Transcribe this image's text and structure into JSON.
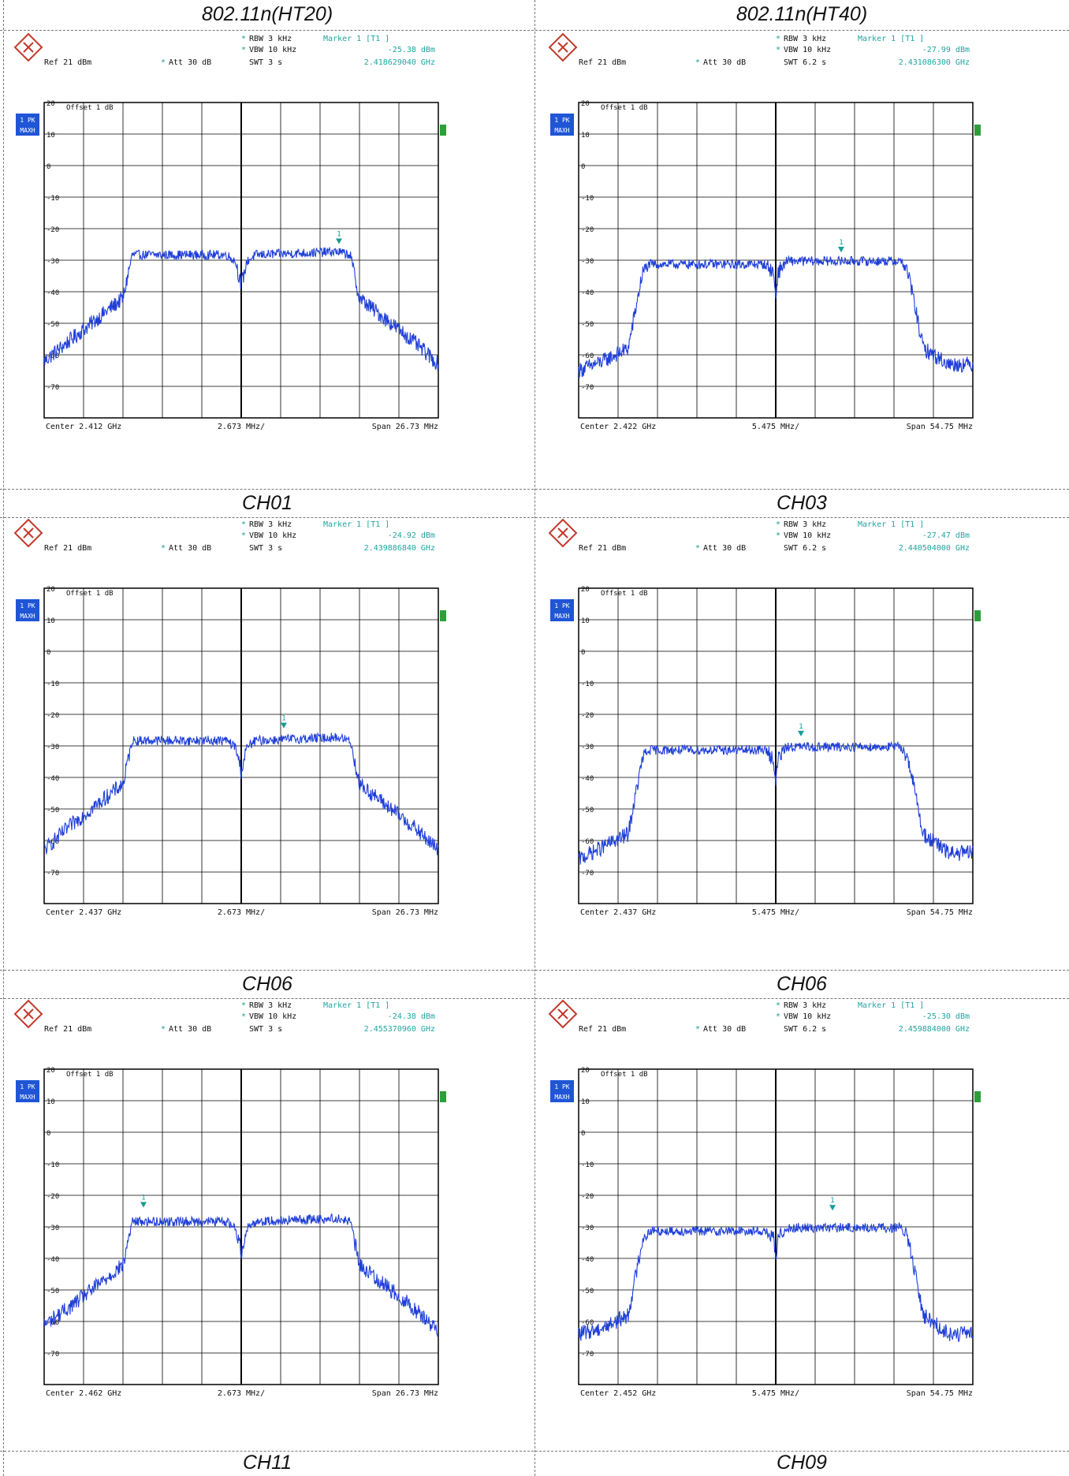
{
  "headers": {
    "left": "802.11n(HT20)",
    "right": "802.11n(HT40)"
  },
  "captions": [
    {
      "left": "CH01",
      "right": "CH03"
    },
    {
      "left": "CH06",
      "right": "CH06"
    },
    {
      "left": "CH11",
      "right": "CH09"
    }
  ],
  "colors": {
    "trace": "#1f3fd8",
    "marker": "#1a9a94",
    "teal_text": "#1fa6a0",
    "badge": "#1f55d6",
    "grid": "#000000"
  },
  "panel_common": {
    "ref": "Ref  21 dBm",
    "att": "Att  30 dB",
    "rbw": "RBW 3 kHz",
    "vbw": "VBW 10 kHz",
    "offset": "Offset  1 dB",
    "badge_line1": "1 PK",
    "badge_line2": "MAXH",
    "marker_number": "1",
    "y_tick_labels": [
      "20",
      "10",
      "0",
      "-10",
      "-20",
      "-30",
      "-40",
      "-50",
      "-60",
      "-70"
    ]
  },
  "panels": [
    {
      "marker": "Marker 1 [T1 ]",
      "marker_level": "-25.38 dBm",
      "swt": "SWT 3 s",
      "marker_freq": "2.418629040 GHz",
      "center": "Center 2.412 GHz",
      "div": "2.673 MHz/",
      "span": "Span 26.73 MHz"
    },
    {
      "marker": "Marker 1 [T1 ]",
      "marker_level": "-27.99 dBm",
      "swt": "SWT 6.2 s",
      "marker_freq": "2.431086300 GHz",
      "center": "Center 2.422 GHz",
      "div": "5.475 MHz/",
      "span": "Span 54.75 MHz"
    },
    {
      "marker": "Marker 1 [T1 ]",
      "marker_level": "-24.92 dBm",
      "swt": "SWT 3 s",
      "marker_freq": "2.439886840 GHz",
      "center": "Center 2.437 GHz",
      "div": "2.673 MHz/",
      "span": "Span 26.73 MHz"
    },
    {
      "marker": "Marker 1 [T1 ]",
      "marker_level": "-27.47 dBm",
      "swt": "SWT 6.2 s",
      "marker_freq": "2.440504000 GHz",
      "center": "Center 2.437 GHz",
      "div": "5.475 MHz/",
      "span": "Span 54.75 MHz"
    },
    {
      "marker": "Marker 1 [T1 ]",
      "marker_level": "-24.38 dBm",
      "swt": "SWT 3 s",
      "marker_freq": "2.455370960 GHz",
      "center": "Center 2.462 GHz",
      "div": "2.673 MHz/",
      "span": "Span 26.73 MHz"
    },
    {
      "marker": "Marker 1 [T1 ]",
      "marker_level": "-25.30 dBm",
      "swt": "SWT 6.2 s",
      "marker_freq": "2.459884000 GHz",
      "center": "Center 2.452 GHz",
      "div": "5.475 MHz/",
      "span": "Span 54.75 MHz"
    }
  ],
  "chart_data": [
    {
      "type": "line",
      "mode": "HT20",
      "center_ghz": 2.412,
      "span_mhz": 26.73,
      "ylim": [
        -80,
        20
      ],
      "marker": {
        "freq_ghz": 2.41862904,
        "level_dbm": -25.38
      },
      "series": [
        {
          "x_mhz": [
            -13.37,
            -11.5,
            -8.0,
            -7.4,
            -1.0,
            -0.4,
            0,
            0.4,
            1.0,
            6.5,
            7.4,
            8.0,
            11.5,
            13.37
          ],
          "y_dbm": [
            -62,
            -55,
            -42,
            -28,
            -28,
            -30,
            -38,
            -30,
            -28,
            -27,
            -28,
            -42,
            -55,
            -63
          ]
        }
      ]
    },
    {
      "type": "line",
      "mode": "HT40",
      "center_ghz": 2.422,
      "span_mhz": 54.75,
      "ylim": [
        -80,
        20
      ],
      "marker": {
        "freq_ghz": 2.4310863,
        "level_dbm": -27.99
      },
      "series": [
        {
          "x_mhz": [
            -27.37,
            -24.0,
            -20.5,
            -18.5,
            -17.5,
            -1.5,
            -0.3,
            0,
            0.3,
            1.5,
            17.5,
            18.5,
            20.5,
            24.0,
            27.37
          ],
          "y_dbm": [
            -65,
            -62,
            -58,
            -34,
            -31,
            -31,
            -34,
            -42,
            -34,
            -30,
            -30,
            -35,
            -58,
            -63,
            -63
          ]
        }
      ]
    },
    {
      "type": "line",
      "mode": "HT20",
      "center_ghz": 2.437,
      "span_mhz": 26.73,
      "ylim": [
        -80,
        20
      ],
      "marker": {
        "freq_ghz": 2.43988684,
        "level_dbm": -24.92
      },
      "series": [
        {
          "x_mhz": [
            -13.37,
            -11.5,
            -8.0,
            -7.4,
            -1.0,
            -0.4,
            0,
            0.4,
            1.0,
            6.5,
            7.4,
            8.0,
            11.5,
            13.37
          ],
          "y_dbm": [
            -63,
            -55,
            -42,
            -28,
            -28,
            -30,
            -38,
            -30,
            -28,
            -27,
            -28,
            -42,
            -55,
            -63
          ]
        }
      ]
    },
    {
      "type": "line",
      "mode": "HT40",
      "center_ghz": 2.437,
      "span_mhz": 54.75,
      "ylim": [
        -80,
        20
      ],
      "marker": {
        "freq_ghz": 2.440504,
        "level_dbm": -27.47
      },
      "series": [
        {
          "x_mhz": [
            -27.37,
            -24.0,
            -20.5,
            -18.5,
            -17.5,
            -1.5,
            -0.3,
            0,
            0.3,
            1.5,
            17.5,
            18.5,
            20.5,
            24.0,
            27.37
          ],
          "y_dbm": [
            -66,
            -62,
            -58,
            -34,
            -31,
            -31,
            -34,
            -43,
            -34,
            -30,
            -30,
            -35,
            -58,
            -64,
            -64
          ]
        }
      ]
    },
    {
      "type": "line",
      "mode": "HT20",
      "center_ghz": 2.462,
      "span_mhz": 26.73,
      "ylim": [
        -80,
        20
      ],
      "marker": {
        "freq_ghz": 2.45537096,
        "level_dbm": -24.38
      },
      "series": [
        {
          "x_mhz": [
            -13.37,
            -11.5,
            -8.0,
            -7.4,
            -1.0,
            -0.4,
            0,
            0.4,
            1.0,
            6.5,
            7.4,
            8.0,
            11.5,
            13.37
          ],
          "y_dbm": [
            -61,
            -55,
            -42,
            -28,
            -28,
            -30,
            -38,
            -30,
            -28,
            -27,
            -28,
            -42,
            -55,
            -63
          ]
        }
      ]
    },
    {
      "type": "line",
      "mode": "HT40",
      "center_ghz": 2.452,
      "span_mhz": 54.75,
      "ylim": [
        -80,
        20
      ],
      "marker": {
        "freq_ghz": 2.459884,
        "level_dbm": -25.3
      },
      "series": [
        {
          "x_mhz": [
            -27.37,
            -24.0,
            -20.5,
            -18.5,
            -17.5,
            -1.5,
            -0.3,
            0,
            0.3,
            1.5,
            17.5,
            18.5,
            20.5,
            24.0,
            27.37
          ],
          "y_dbm": [
            -64,
            -62,
            -58,
            -34,
            -31,
            -31,
            -34,
            -41,
            -34,
            -30,
            -30,
            -35,
            -58,
            -64,
            -64
          ]
        }
      ]
    }
  ]
}
